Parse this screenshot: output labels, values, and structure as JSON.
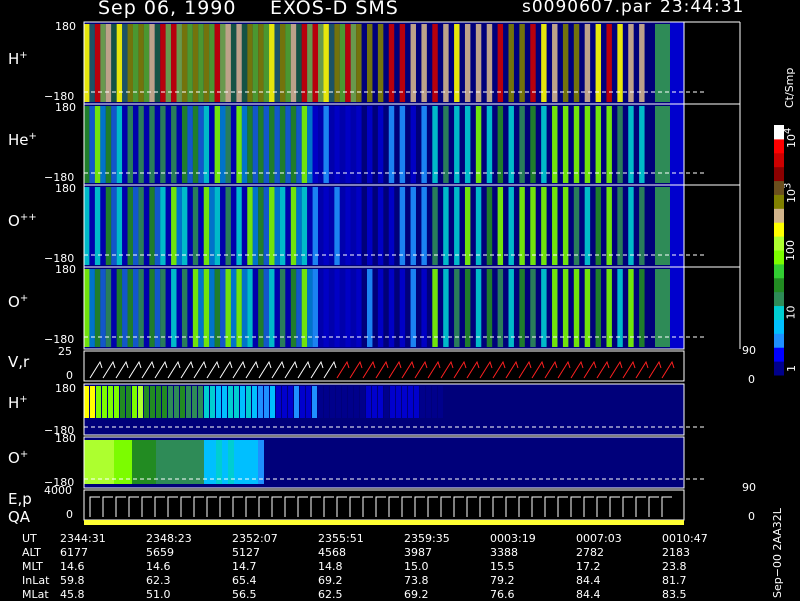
{
  "header": {
    "date": "Sep 06, 1990",
    "instrument": "EXOS-D SMS",
    "filename": "s0090607.par",
    "time": "23:44:31"
  },
  "panels": [
    {
      "ion_base": "H",
      "ion_sup": "+",
      "ymax": "180",
      "ymin": "−180"
    },
    {
      "ion_base": "He",
      "ion_sup": "+",
      "ymax": "180",
      "ymin": "−180"
    },
    {
      "ion_base": "O",
      "ion_sup": "++",
      "ymax": "180",
      "ymin": "−180"
    },
    {
      "ion_base": "O",
      "ion_sup": "+",
      "ymax": "180",
      "ymin": "−180"
    }
  ],
  "vr_panel": {
    "label": "V,r",
    "ymax": "25",
    "ymin": "0",
    "right_max": "90",
    "right_min": "0"
  },
  "lower_panels": [
    {
      "ion_base": "H",
      "ion_sup": "+",
      "ymax": "180",
      "ymin": "−180"
    },
    {
      "ion_base": "O",
      "ion_sup": "+",
      "ymax": "180",
      "ymin": "−180"
    }
  ],
  "ep_panel": {
    "label1": "E,p",
    "label2": "QA",
    "ymax": "4000",
    "ymin": "0",
    "right_max": "90",
    "right_min": "0"
  },
  "colorbar": {
    "unit": "Ct/Smp",
    "tick_labels": [
      "1",
      "10",
      "100"
    ],
    "exp_labels": [
      {
        "base": "10",
        "exp": "3"
      },
      {
        "base": "10",
        "exp": "4"
      }
    ],
    "colors": [
      "#00008b",
      "#0000ff",
      "#1e90ff",
      "#00bfff",
      "#00ced1",
      "#2e8b57",
      "#228b22",
      "#32cd32",
      "#7cfc00",
      "#adff2f",
      "#ffff00",
      "#d2b48c",
      "#808000",
      "#6b4f1d",
      "#8b0000",
      "#cc0000",
      "#ff0000",
      "#ffffff"
    ]
  },
  "footer": {
    "side_label": "Sep−00  2AA32L",
    "rows": [
      {
        "label": "UT",
        "values": [
          "2344:31",
          "2348:23",
          "2352:07",
          "2355:51",
          "2359:35",
          "0003:19",
          "0007:03",
          "0010:47"
        ]
      },
      {
        "label": "ALT",
        "values": [
          "6177",
          "5659",
          "5127",
          "4568",
          "3987",
          "3388",
          "2782",
          "2183"
        ]
      },
      {
        "label": "MLT",
        "values": [
          "14.6",
          "14.6",
          "14.7",
          "14.8",
          "15.0",
          "15.5",
          "17.2",
          "23.8"
        ]
      },
      {
        "label": "InLat",
        "values": [
          "59.8",
          "62.3",
          "65.4",
          "69.2",
          "73.8",
          "79.2",
          "84.4",
          "81.7"
        ]
      },
      {
        "label": "MLat",
        "values": [
          "45.8",
          "51.0",
          "56.5",
          "62.5",
          "69.2",
          "76.6",
          "84.4",
          "83.5"
        ]
      }
    ]
  },
  "chart_data": {
    "type": "heatmap",
    "title": "Sep 06, 1990    EXOS-D SMS",
    "x_axis": "UT",
    "x_ticks": [
      "2344:31",
      "2348:23",
      "2352:07",
      "2355:51",
      "2359:35",
      "0003:19",
      "0007:03",
      "0010:47"
    ],
    "y_range_pitch_angle": [
      -180,
      180
    ],
    "colorbar_range": [
      1,
      10000
    ],
    "colorbar_scale": "log",
    "colorbar_unit": "Ct/Smp",
    "series": [
      {
        "name": "H+",
        "ylim": [
          -180,
          180
        ]
      },
      {
        "name": "He+",
        "ylim": [
          -180,
          180
        ]
      },
      {
        "name": "O++",
        "ylim": [
          -180,
          180
        ]
      },
      {
        "name": "O+",
        "ylim": [
          -180,
          180
        ]
      },
      {
        "name": "V,r",
        "ylim": [
          0,
          25
        ]
      },
      {
        "name": "H+",
        "ylim": [
          -180,
          180
        ]
      },
      {
        "name": "O+",
        "ylim": [
          -180,
          180
        ]
      },
      {
        "name": "E,p",
        "ylim": [
          0,
          4000
        ]
      }
    ]
  }
}
